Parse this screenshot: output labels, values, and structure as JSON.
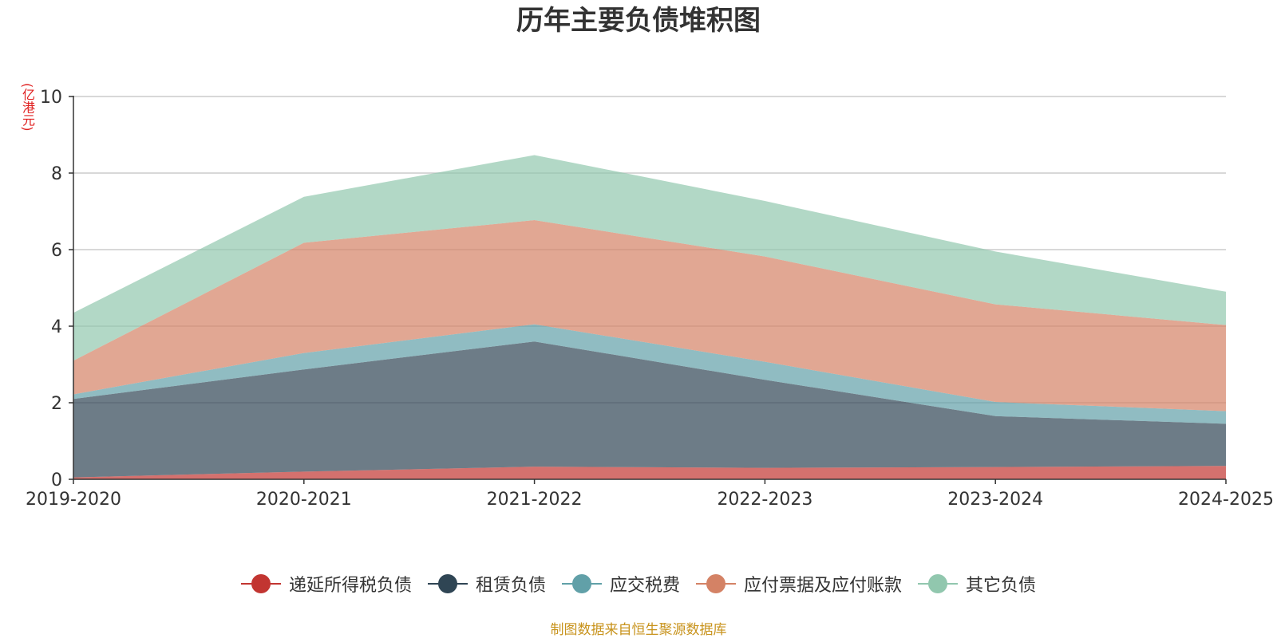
{
  "chart_data": {
    "type": "area",
    "stacked": true,
    "title": "历年主要负债堆积图",
    "unit_label": "(亿港元)",
    "categories": [
      "2019-2020",
      "2020-2021",
      "2021-2022",
      "2022-2023",
      "2023-2024",
      "2024-2025"
    ],
    "ylim": [
      0,
      10
    ],
    "yticks": [
      0,
      2,
      4,
      6,
      8,
      10
    ],
    "grid": true,
    "legend_position": "bottom",
    "series": [
      {
        "name": "递延所得税负债",
        "color": "#c23531",
        "values": [
          0.05,
          0.2,
          0.33,
          0.3,
          0.32,
          0.35
        ]
      },
      {
        "name": "租赁负债",
        "color": "#2f4554",
        "values": [
          2.05,
          2.67,
          3.27,
          2.3,
          1.33,
          1.1
        ]
      },
      {
        "name": "应交税费",
        "color": "#61a0a8",
        "values": [
          0.12,
          0.43,
          0.45,
          0.47,
          0.37,
          0.33
        ]
      },
      {
        "name": "应付票据及应付账款",
        "color": "#d48265",
        "values": [
          0.88,
          2.88,
          2.72,
          2.75,
          2.55,
          2.25
        ]
      },
      {
        "name": "其它负债",
        "color": "#91c7ae",
        "values": [
          1.25,
          1.2,
          1.7,
          1.45,
          1.38,
          0.87
        ]
      }
    ]
  },
  "footer": {
    "source": "制图数据来自恒生聚源数据库"
  }
}
